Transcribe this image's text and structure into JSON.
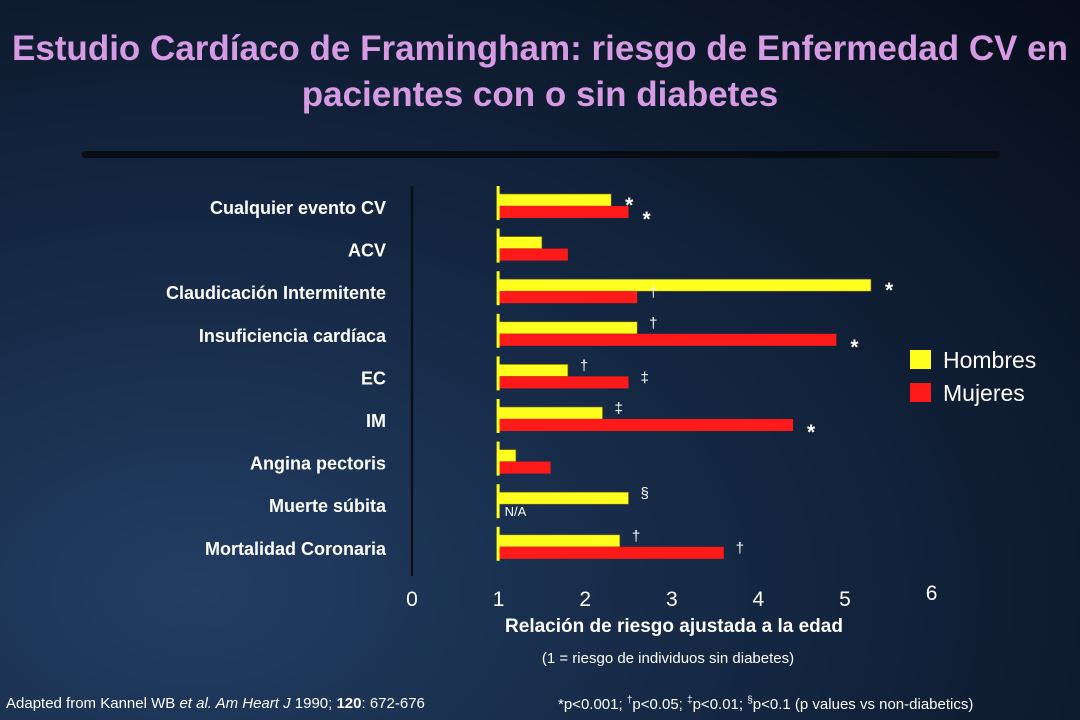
{
  "title": "Estudio Cardíaco de Framingham: riesgo de Enfermedad CV en pacientes con o sin diabetes",
  "colors": {
    "hombres": "#ffff1f",
    "mujeres": "#ff1a1a",
    "baseline": "#ffff1f",
    "title": "#d79be3"
  },
  "footer": {
    "source_prefix": "Adapted from Kannel WB ",
    "source_etal": "et al. Am Heart J",
    "source_year": " 1990; ",
    "source_volume": "120",
    "source_pages": ": 672-676",
    "p1_sym": "*",
    "p1_text": "p<0.001; ",
    "p2_sym": "†",
    "p2_text": "p<0.05; ",
    "p3_sym": "‡",
    "p3_text": "p<0.01; ",
    "p4_sym": "§",
    "p4_text": "p<0.1 (p values vs non-diabetics)"
  },
  "chart_data": {
    "type": "bar",
    "orientation": "horizontal",
    "xlabel": "Relación de riesgo ajustada a la edad",
    "xsubtitle": "(1 = riesgo de individuos sin diabetes)",
    "xlim": [
      0,
      6
    ],
    "xticks": [
      "0",
      "1",
      "2",
      "3",
      "4",
      "5",
      "6"
    ],
    "baseline": 1,
    "legend_position": "right",
    "categories": [
      "Cualquier evento CV",
      "ACV",
      "Claudicación Intermitente",
      "Insuficiencia cardíaca",
      "EC",
      "IM",
      "Angina pectoris",
      "Muerte súbita",
      "Mortalidad Coronaria"
    ],
    "series": [
      {
        "name": "Hombres",
        "values": [
          2.3,
          1.5,
          5.3,
          2.6,
          1.8,
          2.2,
          1.2,
          2.5,
          2.4
        ],
        "markers": [
          "*",
          "",
          "*",
          "†",
          "†",
          "‡",
          "",
          "§",
          "†"
        ]
      },
      {
        "name": "Mujeres",
        "values": [
          2.5,
          1.8,
          2.6,
          4.9,
          2.5,
          4.4,
          1.6,
          null,
          3.6
        ],
        "markers": [
          "*",
          "",
          "†",
          "*",
          "‡",
          "*",
          "",
          "N/A",
          "†"
        ]
      }
    ]
  }
}
